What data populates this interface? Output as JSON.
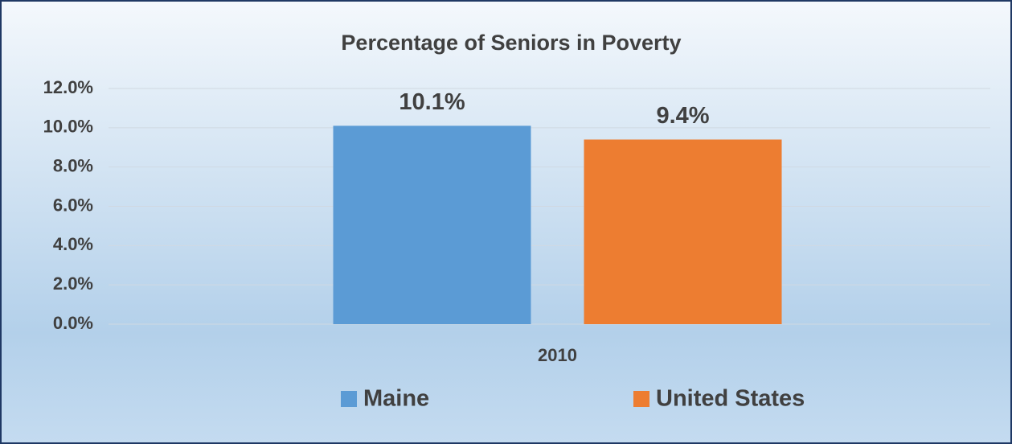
{
  "chart_data": {
    "type": "bar",
    "title": "Percentage of Seniors in Poverty",
    "categories": [
      "2010"
    ],
    "series": [
      {
        "name": "Maine",
        "color": "#5b9bd5",
        "values": [
          10.1
        ],
        "value_labels": [
          "10.1%"
        ]
      },
      {
        "name": "United States",
        "color": "#ed7d31",
        "values": [
          9.4
        ],
        "value_labels": [
          "9.4%"
        ]
      }
    ],
    "ylim": [
      0,
      12
    ],
    "yticks": [
      {
        "value": 0,
        "label": "0.0%"
      },
      {
        "value": 2,
        "label": "2.0%"
      },
      {
        "value": 4,
        "label": "4.0%"
      },
      {
        "value": 6,
        "label": "6.0%"
      },
      {
        "value": 8,
        "label": "8.0%"
      },
      {
        "value": 10,
        "label": "10.0%"
      },
      {
        "value": 12,
        "label": "12.0%"
      }
    ],
    "grid": true,
    "legend": "bottom"
  }
}
